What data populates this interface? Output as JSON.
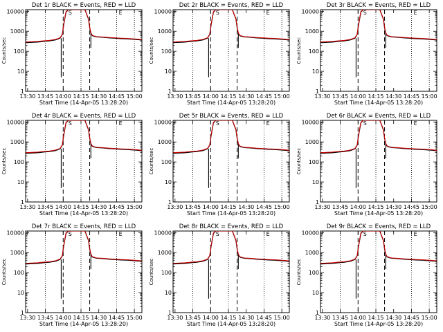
{
  "chart_data": {
    "type": "line",
    "panel_titles": [
      "Det 1r BLACK = Events, RED = LLD",
      "Det 2r BLACK = Events, RED = LLD",
      "Det 3r BLACK = Events, RED = LLD",
      "Det 4r BLACK = Events, RED = LLD",
      "Det 5r BLACK = Events, RED = LLD",
      "Det 6r BLACK = Events, RED = LLD",
      "Det 7r BLACK = Events, RED = LLD",
      "Det 8r BLACK = Events, RED = LLD",
      "Det 9r BLACK = Events, RED = LLD"
    ],
    "xlabel": "Start Time (14-Apr-05 13:28:20)",
    "ylabel": "Counts/sec",
    "x_tick_labels": [
      "13:30",
      "13:45",
      "14:00",
      "14:15",
      "14:30",
      "14:45",
      "15:00"
    ],
    "x_ticks_min": [
      1.67,
      16.67,
      31.67,
      46.67,
      61.67,
      76.67,
      91.67
    ],
    "xlim_min": [
      0,
      98
    ],
    "y_scale": "log",
    "y_tick_labels": [
      "1",
      "10",
      "100",
      "1000",
      "10000"
    ],
    "y_ticks": [
      1,
      10,
      100,
      1000,
      10000
    ],
    "ylim": [
      1,
      12000
    ],
    "dotted_vlines_min": [
      16.67,
      46.67,
      76.67,
      91.67
    ],
    "dashed_vlines_min": [
      31.67,
      54.0
    ],
    "markers": [
      {
        "label": "S",
        "x_min": 37.5
      },
      {
        "label": "E",
        "x_min": 80.0
      }
    ],
    "series": [
      {
        "name": "BLACK = Events",
        "color": "#000000",
        "x_min": [
          0,
          5,
          10,
          15,
          20,
          25,
          29,
          31,
          32,
          34,
          36,
          40,
          45,
          50,
          53,
          54,
          55,
          56,
          57,
          60,
          65,
          70,
          75,
          80,
          85,
          90,
          95,
          98
        ],
        "y": [
          270,
          280,
          290,
          310,
          330,
          370,
          450,
          700,
          2000,
          9000,
          12000,
          12000,
          12000,
          12000,
          4000,
          1500,
          800,
          620,
          580,
          520,
          500,
          470,
          450,
          430,
          420,
          400,
          380,
          360
        ],
        "dropouts": [
          {
            "x_min": 30.0,
            "y_min": 5
          },
          {
            "x_min": 55.0,
            "y_min": 150
          }
        ]
      },
      {
        "name": "RED = LLD",
        "color": "#cc0000",
        "x_min": [
          0,
          5,
          10,
          15,
          20,
          25,
          29,
          31,
          32,
          34,
          36,
          40,
          45,
          50,
          53,
          54,
          55,
          56,
          57,
          60,
          65,
          70,
          75,
          80,
          85,
          90,
          95,
          98
        ],
        "y": [
          290,
          300,
          310,
          330,
          350,
          390,
          470,
          720,
          2100,
          9500,
          12000,
          12000,
          12000,
          12000,
          4200,
          1600,
          850,
          650,
          600,
          540,
          520,
          490,
          470,
          450,
          440,
          420,
          400,
          380
        ]
      }
    ]
  }
}
